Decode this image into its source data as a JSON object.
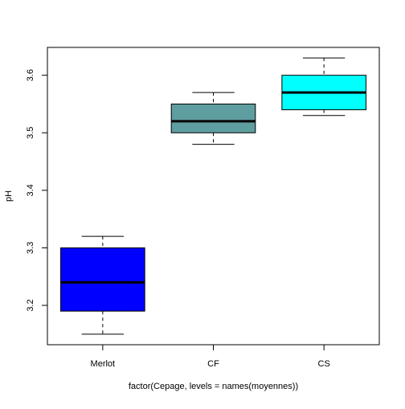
{
  "chart_data": {
    "type": "boxplot",
    "title": "",
    "xlabel": "factor(Cepage, levels = names(moyennes))",
    "ylabel": "pH",
    "categories": [
      "Merlot",
      "CF",
      "CS"
    ],
    "boxes": [
      {
        "category": "Merlot",
        "whisker_low": 3.15,
        "q1": 3.19,
        "median": 3.24,
        "q3": 3.3,
        "whisker_high": 3.32,
        "color": "#0000FF"
      },
      {
        "category": "CF",
        "whisker_low": 3.48,
        "q1": 3.5,
        "median": 3.52,
        "q3": 3.55,
        "whisker_high": 3.57,
        "color": "#5F9EA0"
      },
      {
        "category": "CS",
        "whisker_low": 3.53,
        "q1": 3.54,
        "median": 3.57,
        "q3": 3.6,
        "whisker_high": 3.63,
        "color": "#00FFFF"
      }
    ],
    "y_ticks": [
      3.2,
      3.3,
      3.4,
      3.5,
      3.6
    ],
    "y_tick_labels": [
      "3.2",
      "3.3",
      "3.4",
      "3.5",
      "3.6"
    ],
    "ylim": [
      3.1316,
      3.6484
    ],
    "grid": false,
    "legend": "none"
  }
}
